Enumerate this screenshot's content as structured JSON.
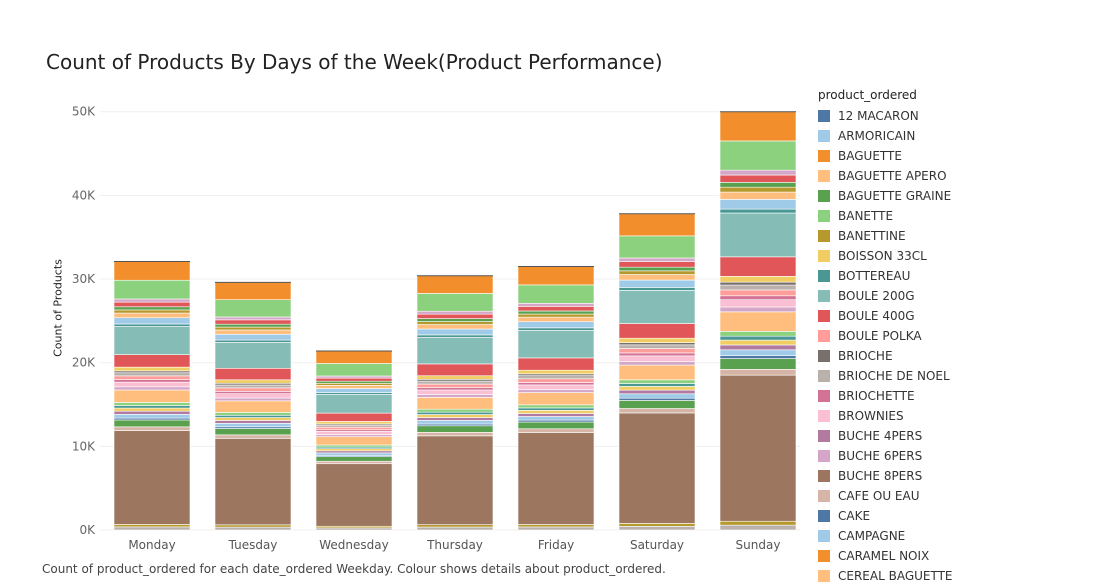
{
  "chart_data": {
    "type": "bar",
    "stacked": true,
    "title": "Count of Products By Days of the Week(Product Performance)",
    "ylabel": "Count of Products",
    "xlabel": "",
    "caption": "Count of product_ordered for each date_ordered Weekday.  Colour shows details about product_ordered.",
    "legend_title": "product_ordered",
    "legend_position": "right",
    "grid": true,
    "ylim": [
      0,
      52000
    ],
    "yticks": [
      0,
      10000,
      20000,
      30000,
      40000,
      50000
    ],
    "ytick_labels": [
      "0K",
      "10K",
      "20K",
      "30K",
      "40K",
      "50K"
    ],
    "categories": [
      "Monday",
      "Tuesday",
      "Wednesday",
      "Thursday",
      "Friday",
      "Saturday",
      "Sunday"
    ],
    "totals": [
      32100,
      29600,
      21400,
      30400,
      31500,
      37800,
      50000
    ],
    "legend": [
      {
        "name": "12 MACARON",
        "color": "#4e79a7"
      },
      {
        "name": "ARMORICAIN",
        "color": "#a0cbe8"
      },
      {
        "name": "BAGUETTE",
        "color": "#f28e2b"
      },
      {
        "name": "BAGUETTE APERO",
        "color": "#ffbe7d"
      },
      {
        "name": "BAGUETTE GRAINE",
        "color": "#59a14f"
      },
      {
        "name": "BANETTE",
        "color": "#8cd17d"
      },
      {
        "name": "BANETTINE",
        "color": "#b6992d"
      },
      {
        "name": "BOISSON 33CL",
        "color": "#f1ce63"
      },
      {
        "name": "BOTTEREAU",
        "color": "#499894"
      },
      {
        "name": "BOULE 200G",
        "color": "#86bcb6"
      },
      {
        "name": "BOULE 400G",
        "color": "#e15759"
      },
      {
        "name": "BOULE POLKA",
        "color": "#ff9d9a"
      },
      {
        "name": "BRIOCHE",
        "color": "#79706e"
      },
      {
        "name": "BRIOCHE DE NOEL",
        "color": "#bab0ac"
      },
      {
        "name": "BRIOCHETTE",
        "color": "#d37295"
      },
      {
        "name": "BROWNIES",
        "color": "#fabfd2"
      },
      {
        "name": "BUCHE 4PERS",
        "color": "#b07aa1"
      },
      {
        "name": "BUCHE 6PERS",
        "color": "#d4a6c8"
      },
      {
        "name": "BUCHE 8PERS",
        "color": "#9d7660"
      },
      {
        "name": "CAFE OU EAU",
        "color": "#d7b5a6"
      },
      {
        "name": "CAKE",
        "color": "#4e79a7"
      },
      {
        "name": "CAMPAGNE",
        "color": "#a0cbe8"
      },
      {
        "name": "CARAMEL NOIX",
        "color": "#f28e2b"
      },
      {
        "name": "CEREAL BAGUETTE",
        "color": "#ffbe7d"
      }
    ],
    "segment_template": [
      [
        "#bab0ac",
        0.01
      ],
      [
        "#b6992d",
        0.008
      ],
      [
        "#9d7660",
        0.3
      ],
      [
        "#d7b5a6",
        0.012
      ],
      [
        "#59a14f",
        0.022
      ],
      [
        "#4e79a7",
        0.006
      ],
      [
        "#a0cbe8",
        0.012
      ],
      [
        "#b07aa1",
        0.01
      ],
      [
        "#f1ce63",
        0.01
      ],
      [
        "#499894",
        0.008
      ],
      [
        "#8cd17d",
        0.01
      ],
      [
        "#ffbe7d",
        0.04
      ],
      [
        "#d4a6c8",
        0.01
      ],
      [
        "#fabfd2",
        0.015
      ],
      [
        "#d37295",
        0.008
      ],
      [
        "#ff9d9a",
        0.012
      ],
      [
        "#bab0ac",
        0.01
      ],
      [
        "#79706e",
        0.006
      ],
      [
        "#f1ce63",
        0.012
      ],
      [
        "#e15759",
        0.04
      ],
      [
        "#86bcb6",
        0.09
      ],
      [
        "#499894",
        0.008
      ],
      [
        "#a0cbe8",
        0.02
      ],
      [
        "#ffbe7d",
        0.015
      ],
      [
        "#b6992d",
        0.01
      ],
      [
        "#59a14f",
        0.01
      ],
      [
        "#e15759",
        0.015
      ],
      [
        "#d4a6c8",
        0.01
      ],
      [
        "#8cd17d",
        0.06
      ],
      [
        "#f28e2b",
        0.06
      ]
    ]
  }
}
